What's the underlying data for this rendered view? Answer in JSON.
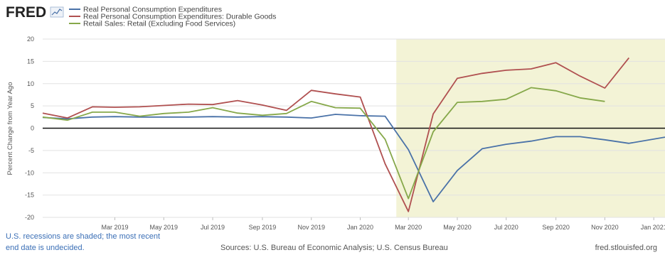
{
  "header": {
    "brand": "FRED"
  },
  "chart_data": {
    "type": "line",
    "ylabel": "Percent Change from Year Ago",
    "ylim": [
      -20,
      20
    ],
    "yticks": [
      -20,
      -15,
      -10,
      -5,
      0,
      5,
      10,
      15,
      20
    ],
    "xlim": [
      "2018-12-01",
      "2021-01-15"
    ],
    "xticks": [
      {
        "label": "Mar 2019",
        "date": "2019-03-01"
      },
      {
        "label": "May 2019",
        "date": "2019-05-01"
      },
      {
        "label": "Jul 2019",
        "date": "2019-07-01"
      },
      {
        "label": "Sep 2019",
        "date": "2019-09-01"
      },
      {
        "label": "Nov 2019",
        "date": "2019-11-01"
      },
      {
        "label": "Jan 2020",
        "date": "2020-01-01"
      },
      {
        "label": "Mar 2020",
        "date": "2020-03-01"
      },
      {
        "label": "May 2020",
        "date": "2020-05-01"
      },
      {
        "label": "Jul 2020",
        "date": "2020-07-01"
      },
      {
        "label": "Sep 2020",
        "date": "2020-09-01"
      },
      {
        "label": "Nov 2020",
        "date": "2020-11-01"
      },
      {
        "label": "Jan 2021",
        "date": "2021-01-01"
      }
    ],
    "recession": {
      "start": "2020-02-15",
      "end": "2021-01-15",
      "color": "#f3f3d6"
    },
    "zero_line": true,
    "series": [
      {
        "name": "Real Personal Consumption Expenditures",
        "color": "#4a72a8",
        "points": [
          {
            "x": "2018-12-01",
            "y": 2.4
          },
          {
            "x": "2019-01-01",
            "y": 2.1
          },
          {
            "x": "2019-02-01",
            "y": 2.5
          },
          {
            "x": "2019-03-01",
            "y": 2.6
          },
          {
            "x": "2019-04-01",
            "y": 2.5
          },
          {
            "x": "2019-05-01",
            "y": 2.5
          },
          {
            "x": "2019-06-01",
            "y": 2.5
          },
          {
            "x": "2019-07-01",
            "y": 2.6
          },
          {
            "x": "2019-08-01",
            "y": 2.5
          },
          {
            "x": "2019-09-01",
            "y": 2.6
          },
          {
            "x": "2019-10-01",
            "y": 2.5
          },
          {
            "x": "2019-11-01",
            "y": 2.3
          },
          {
            "x": "2019-12-01",
            "y": 3.1
          },
          {
            "x": "2020-01-01",
            "y": 2.8
          },
          {
            "x": "2020-02-01",
            "y": 2.7
          },
          {
            "x": "2020-03-01",
            "y": -4.8
          },
          {
            "x": "2020-04-01",
            "y": -16.5
          },
          {
            "x": "2020-05-01",
            "y": -9.5
          },
          {
            "x": "2020-06-01",
            "y": -4.6
          },
          {
            "x": "2020-07-01",
            "y": -3.6
          },
          {
            "x": "2020-08-01",
            "y": -2.9
          },
          {
            "x": "2020-09-01",
            "y": -1.9
          },
          {
            "x": "2020-10-01",
            "y": -1.9
          },
          {
            "x": "2020-11-01",
            "y": -2.6
          },
          {
            "x": "2020-12-01",
            "y": -3.4
          },
          {
            "x": "2021-01-15",
            "y": -2.0
          }
        ]
      },
      {
        "name": "Real Personal Consumption Expenditures: Durable Goods",
        "color": "#b05050",
        "points": [
          {
            "x": "2018-12-01",
            "y": 3.4
          },
          {
            "x": "2019-01-01",
            "y": 2.3
          },
          {
            "x": "2019-02-01",
            "y": 4.8
          },
          {
            "x": "2019-03-01",
            "y": 4.7
          },
          {
            "x": "2019-04-01",
            "y": 4.8
          },
          {
            "x": "2019-05-01",
            "y": 5.1
          },
          {
            "x": "2019-06-01",
            "y": 5.4
          },
          {
            "x": "2019-07-01",
            "y": 5.3
          },
          {
            "x": "2019-08-01",
            "y": 6.2
          },
          {
            "x": "2019-09-01",
            "y": 5.2
          },
          {
            "x": "2019-10-01",
            "y": 4.0
          },
          {
            "x": "2019-11-01",
            "y": 8.5
          },
          {
            "x": "2019-12-01",
            "y": 7.7
          },
          {
            "x": "2020-01-01",
            "y": 7.0
          },
          {
            "x": "2020-02-01",
            "y": -8.0
          },
          {
            "x": "2020-03-01",
            "y": -18.7
          },
          {
            "x": "2020-04-01",
            "y": 3.2
          },
          {
            "x": "2020-05-01",
            "y": 11.2
          },
          {
            "x": "2020-06-01",
            "y": 12.3
          },
          {
            "x": "2020-07-01",
            "y": 13.0
          },
          {
            "x": "2020-08-01",
            "y": 13.3
          },
          {
            "x": "2020-09-01",
            "y": 14.7
          },
          {
            "x": "2020-10-01",
            "y": 11.7
          },
          {
            "x": "2020-11-01",
            "y": 9.0
          },
          {
            "x": "2020-12-01",
            "y": 15.8
          }
        ]
      },
      {
        "name": "Retail Sales: Retail (Excluding Food Services)",
        "color": "#86a84a",
        "points": [
          {
            "x": "2018-12-01",
            "y": 2.5
          },
          {
            "x": "2019-01-01",
            "y": 1.8
          },
          {
            "x": "2019-02-01",
            "y": 3.6
          },
          {
            "x": "2019-03-01",
            "y": 3.6
          },
          {
            "x": "2019-04-01",
            "y": 2.7
          },
          {
            "x": "2019-05-01",
            "y": 3.3
          },
          {
            "x": "2019-06-01",
            "y": 3.6
          },
          {
            "x": "2019-07-01",
            "y": 4.6
          },
          {
            "x": "2019-08-01",
            "y": 3.4
          },
          {
            "x": "2019-09-01",
            "y": 2.9
          },
          {
            "x": "2019-10-01",
            "y": 3.3
          },
          {
            "x": "2019-11-01",
            "y": 6.0
          },
          {
            "x": "2019-12-01",
            "y": 4.6
          },
          {
            "x": "2020-01-01",
            "y": 4.5
          },
          {
            "x": "2020-02-01",
            "y": -2.5
          },
          {
            "x": "2020-03-01",
            "y": -15.8
          },
          {
            "x": "2020-04-01",
            "y": -0.8
          },
          {
            "x": "2020-05-01",
            "y": 5.8
          },
          {
            "x": "2020-06-01",
            "y": 6.0
          },
          {
            "x": "2020-07-01",
            "y": 6.5
          },
          {
            "x": "2020-08-01",
            "y": 9.1
          },
          {
            "x": "2020-09-01",
            "y": 8.4
          },
          {
            "x": "2020-10-01",
            "y": 6.8
          },
          {
            "x": "2020-11-01",
            "y": 6.0
          }
        ]
      }
    ]
  },
  "footer": {
    "recession_note_line1": "U.S. recessions are shaded; the most recent",
    "recession_note_line2": "end date is undecided.",
    "sources": "Sources: U.S. Bureau of Economic Analysis; U.S. Census Bureau",
    "url": "fred.stlouisfed.org"
  }
}
